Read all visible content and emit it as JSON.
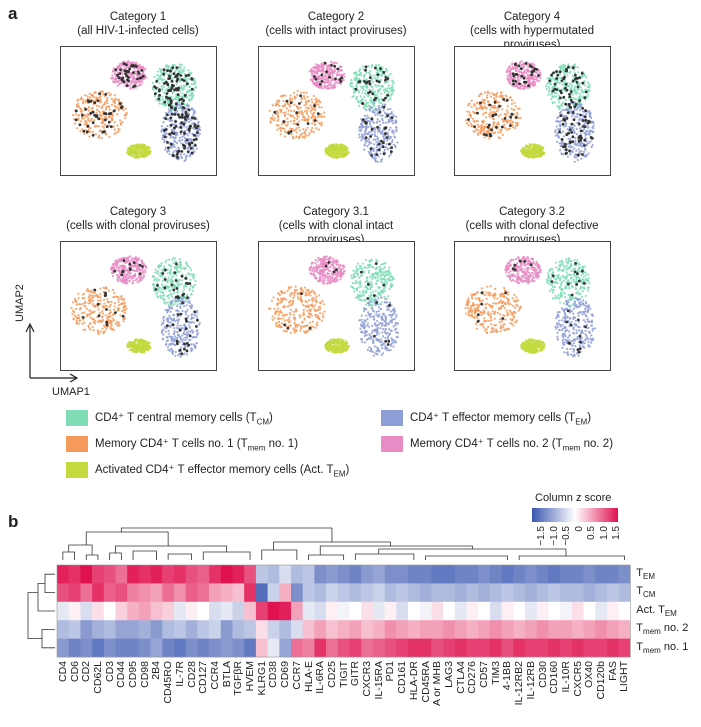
{
  "panel_a": {
    "letter": "a",
    "plots": [
      {
        "title1": "Category 1",
        "title2": "(all HIV-1-infected cells)",
        "dots": 220
      },
      {
        "title1": "Category 2",
        "title2": "(cells with intact proviruses)",
        "dots": 90
      },
      {
        "title1": "Category 4",
        "title2": "(cells with hypermutated proviruses)",
        "dots": 160
      },
      {
        "title1": "Category 3",
        "title2": "(cells with clonal proviruses)",
        "dots": 70
      },
      {
        "title1": "Category 3.1",
        "title2": "(cells with clonal intact proviruses)",
        "dots": 20
      },
      {
        "title1": "Category 3.2",
        "title2": "(cells with clonal defective proviruses)",
        "dots": 35
      }
    ],
    "x_axis": "UMAP1",
    "y_axis": "UMAP2",
    "legend": [
      {
        "text": "CD4⁺ T central memory cells (T",
        "sub": "CM",
        "tail": ")",
        "color": "#7fdcb5"
      },
      {
        "text": "CD4⁺ T effector memory cells (T",
        "sub": "EM",
        "tail": ")",
        "color": "#8e9ed6"
      },
      {
        "text": "Memory CD4⁺ T cells no. 1 (T",
        "sub": "mem",
        "tail": " no. 1)",
        "color": "#f59a5b"
      },
      {
        "text": "Memory CD4⁺ T cells no. 2 (T",
        "sub": "mem",
        "tail": " no. 2)",
        "color": "#e78cc4"
      },
      {
        "text": "Activated CD4⁺ T effector memory cells (Act. T",
        "sub": "EM",
        "tail": ")",
        "color": "#c3d93e"
      }
    ]
  },
  "panel_b": {
    "letter": "b",
    "colorbar_title": "Column z score",
    "colorbar_ticks": [
      "−1.5",
      "−1.0",
      "−0.5",
      "0",
      "0.5",
      "1.0",
      "1.5"
    ],
    "colors": {
      "low": "#3a57b0",
      "mid": "#ffffff",
      "high": "#e0114f"
    },
    "row_labels": [
      {
        "main": "T",
        "sub": "EM",
        "tail": ""
      },
      {
        "main": "T",
        "sub": "CM",
        "tail": ""
      },
      {
        "main": "Act. T",
        "sub": "EM",
        "tail": ""
      },
      {
        "main": "T",
        "sub": "mem",
        "tail": " no. 2"
      },
      {
        "main": "T",
        "sub": "mem",
        "tail": " no. 1"
      }
    ],
    "columns": [
      "CD4",
      "CD6",
      "CD2",
      "CD62L",
      "CD3",
      "CD44",
      "CD95",
      "CD98",
      "2B4",
      "CD45RO",
      "IL-7R",
      "CD28",
      "CD127",
      "CCR4",
      "BTLA",
      "TGFβR",
      "HVEM",
      "KLRG1",
      "CD38",
      "CD69",
      "CCR7",
      "HLA-E",
      "IL-6RA",
      "CD25",
      "TIGIT",
      "GITR",
      "CXCR3",
      "IL-15RA",
      "PD1",
      "CD161",
      "HLA-DR",
      "CD45RA",
      "A or MHB",
      "LAG3",
      "CTLA4",
      "CD276",
      "CD57",
      "TIM3",
      "4-1BB",
      "IL-12RB2",
      "IL-12RB",
      "CD30",
      "CD160",
      "IL-10R",
      "CXCR5",
      "OX40",
      "CD120b",
      "FAS",
      "LIGHT"
    ],
    "matrix": [
      [
        1.4,
        1.3,
        1.5,
        1.2,
        1.1,
        0.9,
        1.4,
        1.3,
        1.4,
        1.2,
        1.3,
        1.1,
        1.0,
        1.3,
        1.5,
        1.4,
        1.1,
        -0.5,
        -0.6,
        -0.3,
        -0.6,
        -0.5,
        -1.0,
        -0.9,
        -1.0,
        -1.1,
        -0.9,
        -0.8,
        -1.0,
        -1.0,
        -1.1,
        -1.1,
        -1.2,
        -1.2,
        -1.1,
        -1.1,
        -1.0,
        -1.1,
        -1.2,
        -1.1,
        -1.0,
        -1.1,
        -1.2,
        -1.1,
        -1.1,
        -1.0,
        -1.1,
        -1.1,
        -1.0
      ],
      [
        1.1,
        1.2,
        0.9,
        1.3,
        1.0,
        1.1,
        0.8,
        0.7,
        0.6,
        0.9,
        0.7,
        1.0,
        0.9,
        0.6,
        0.5,
        0.4,
        1.3,
        -1.3,
        -0.4,
        0.5,
        -1.0,
        -0.5,
        -0.6,
        -0.4,
        -0.5,
        -0.6,
        -0.5,
        -0.4,
        -0.6,
        -0.5,
        -0.6,
        -0.7,
        -0.6,
        -0.6,
        -0.7,
        -0.6,
        -0.7,
        -0.6,
        -0.5,
        -0.6,
        -0.7,
        -0.6,
        -0.5,
        -0.6,
        -0.6,
        -0.7,
        -0.6,
        -0.5,
        -0.6
      ],
      [
        -0.2,
        0.1,
        -0.3,
        0.2,
        0.0,
        0.3,
        0.5,
        0.6,
        0.4,
        0.3,
        -0.2,
        0.1,
        0.0,
        -0.3,
        -0.2,
        -0.4,
        0.4,
        1.2,
        1.5,
        1.4,
        0.6,
        -0.2,
        -0.3,
        0.1,
        -0.1,
        0.0,
        0.2,
        -0.2,
        0.1,
        -0.3,
        0.0,
        -0.1,
        0.2,
        0.0,
        -0.2,
        0.1,
        0.0,
        -0.3,
        0.1,
        0.0,
        -0.2,
        0.1,
        0.0,
        -0.1,
        0.2,
        0.0,
        -0.2,
        0.1,
        0.0
      ],
      [
        -0.6,
        -0.5,
        -0.9,
        -0.7,
        -0.6,
        -0.8,
        -0.8,
        -0.7,
        -0.9,
        -0.6,
        -0.5,
        -0.7,
        -0.5,
        -0.4,
        -0.9,
        -0.6,
        -0.5,
        0.2,
        -0.4,
        -0.6,
        -0.3,
        0.4,
        0.6,
        0.4,
        0.5,
        0.6,
        0.4,
        0.5,
        0.7,
        0.6,
        0.5,
        0.6,
        0.6,
        0.7,
        0.6,
        0.5,
        0.6,
        0.7,
        0.6,
        0.5,
        0.6,
        0.7,
        0.6,
        0.6,
        0.5,
        0.6,
        0.7,
        0.6,
        0.5
      ],
      [
        -0.9,
        -1.1,
        -1.0,
        -1.2,
        -1.0,
        -1.1,
        -1.1,
        -1.0,
        -0.8,
        -1.1,
        -1.2,
        -1.0,
        -1.1,
        -1.0,
        -0.9,
        -1.0,
        -1.2,
        0.4,
        -0.2,
        -0.8,
        0.9,
        0.8,
        1.3,
        0.9,
        1.1,
        1.2,
        0.9,
        1.0,
        1.1,
        1.2,
        1.3,
        1.3,
        1.1,
        1.2,
        1.3,
        1.2,
        1.2,
        1.3,
        1.1,
        1.3,
        1.2,
        1.2,
        1.3,
        1.2,
        1.3,
        1.2,
        1.2,
        1.3,
        1.2
      ]
    ]
  }
}
